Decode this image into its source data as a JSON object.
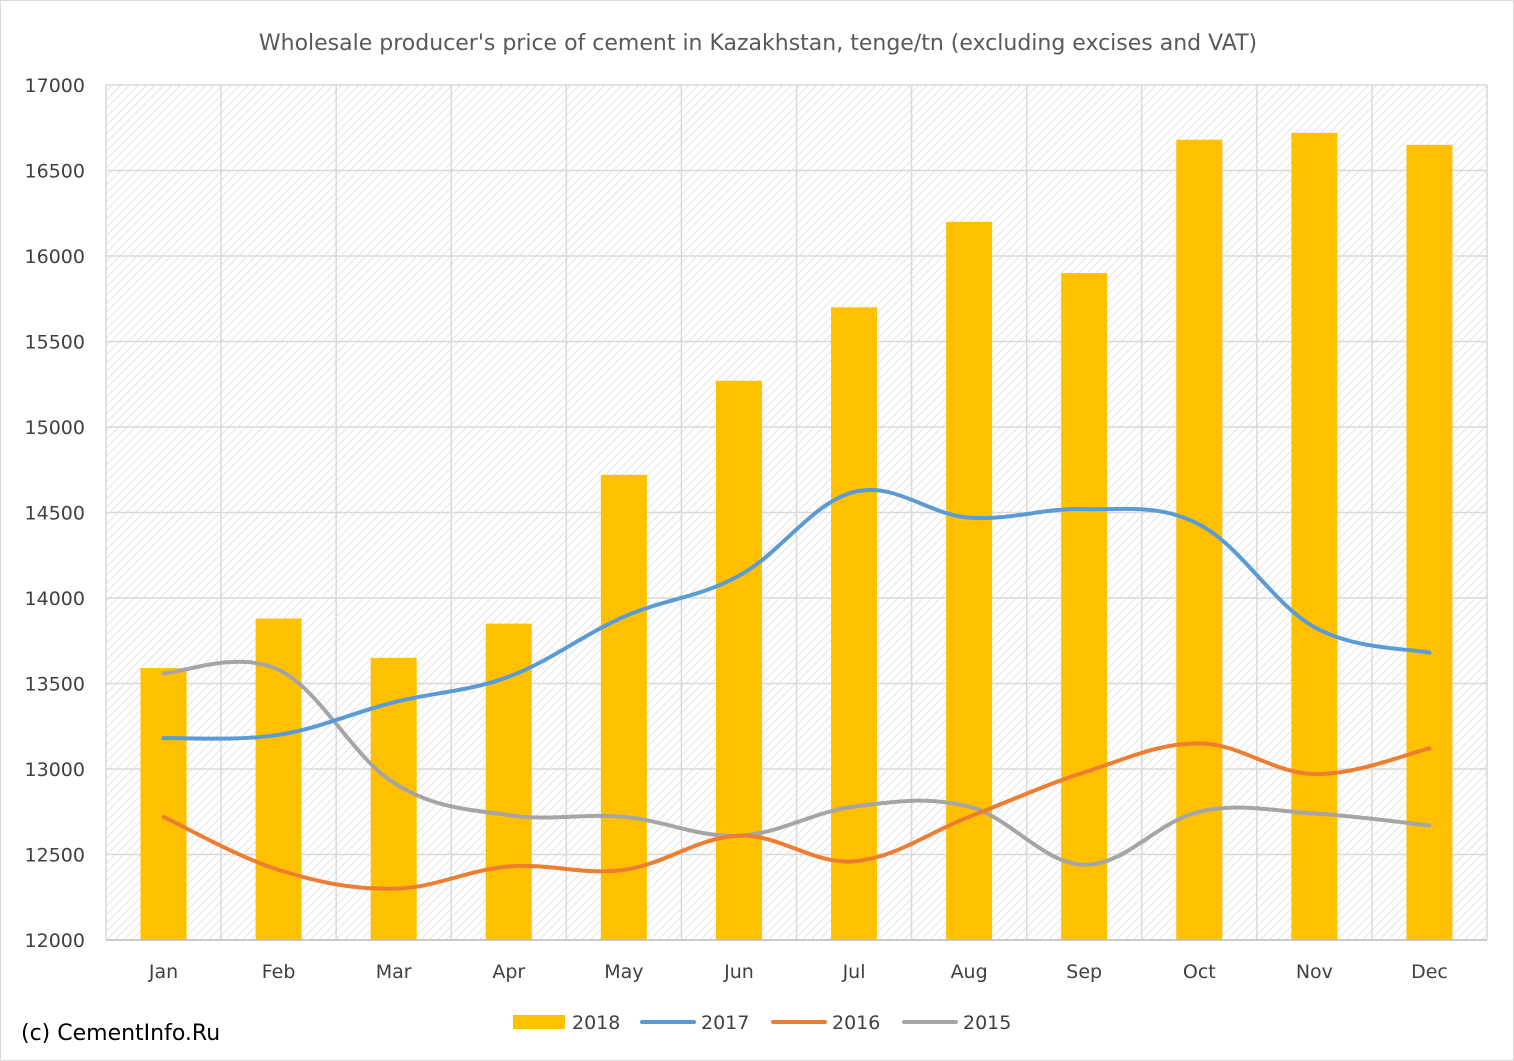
{
  "chart_data": {
    "type": "bar+line",
    "title": "Wholesale producer's price of cement in Kazakhstan, tenge/tn (excluding excises and VAT)",
    "categories": [
      "Jan",
      "Feb",
      "Mar",
      "Apr",
      "May",
      "Jun",
      "Jul",
      "Aug",
      "Sep",
      "Oct",
      "Nov",
      "Dec"
    ],
    "ylim": [
      12000,
      17000
    ],
    "yticks": [
      12000,
      12500,
      13000,
      13500,
      14000,
      14500,
      15000,
      15500,
      16000,
      16500,
      17000
    ],
    "grid": true,
    "legend_position": "bottom",
    "bar_series": {
      "name": "2018",
      "color": "#FFC000",
      "values": [
        13590,
        13880,
        13650,
        13850,
        14720,
        15270,
        15700,
        16200,
        15900,
        16680,
        16720,
        16650
      ]
    },
    "line_series": [
      {
        "name": "2017",
        "color": "#5B9BD5",
        "values": [
          13180,
          13200,
          13390,
          13540,
          13890,
          14130,
          14620,
          14470,
          14520,
          14430,
          13830,
          13680
        ]
      },
      {
        "name": "2016",
        "color": "#ED7D31",
        "values": [
          12720,
          12410,
          12300,
          12430,
          12410,
          12610,
          12460,
          12720,
          12980,
          13150,
          12970,
          13120
        ]
      },
      {
        "name": "2015",
        "color": "#A5A5A5",
        "values": [
          13560,
          13580,
          12920,
          12730,
          12720,
          12610,
          12780,
          12780,
          12440,
          12750,
          12740,
          12670
        ]
      }
    ]
  },
  "copyright": "(c) CementInfo.Ru"
}
